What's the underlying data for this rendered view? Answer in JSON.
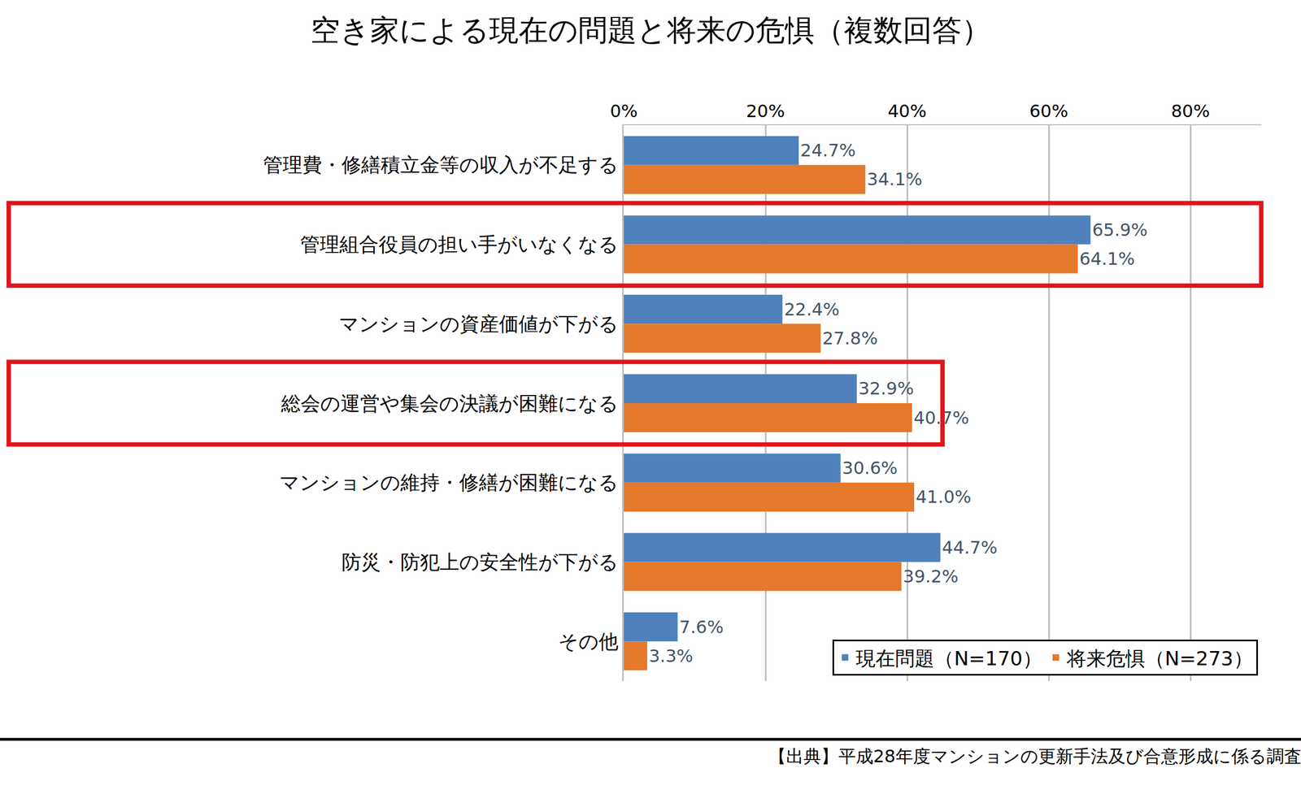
{
  "chart_data": {
    "type": "bar",
    "title": "空き家による現在の問題と将来の危惧（複数回答）",
    "orientation": "horizontal",
    "categories": [
      "管理費・修繕積立金等の収入が不足する",
      "管理組合役員の担い手がいなくなる",
      "マンションの資産価値が下がる",
      "総会の運営や集会の決議が困難になる",
      "マンションの維持・修繕が困難になる",
      "防災・防犯上の安全性が下がる",
      "その他"
    ],
    "series": [
      {
        "name": "現在問題（N=170）",
        "color": "#4f81bd",
        "values": [
          24.7,
          65.9,
          22.4,
          32.9,
          30.6,
          44.7,
          7.6
        ],
        "value_labels": [
          "24.7%",
          "65.9%",
          "22.4%",
          "32.9%",
          "30.6%",
          "44.7%",
          "7.6%"
        ]
      },
      {
        "name": "将来危惧（N=273）",
        "color": "#e4782b",
        "values": [
          34.1,
          64.1,
          27.8,
          40.7,
          41.0,
          39.2,
          3.3
        ],
        "value_labels": [
          "34.1%",
          "64.1%",
          "27.8%",
          "40.7%",
          "41.0%",
          "39.2%",
          "3.3%"
        ]
      }
    ],
    "xlim": [
      0,
      90
    ],
    "xticks": [
      {
        "value": 0,
        "label": "0%"
      },
      {
        "value": 20,
        "label": "20%"
      },
      {
        "value": 40,
        "label": "40%"
      },
      {
        "value": 60,
        "label": "60%"
      },
      {
        "value": 80,
        "label": "80%"
      }
    ],
    "grid": true,
    "data_labels": true,
    "legend": "lower right",
    "annotations": [
      "【出典】平成28年度マンションの更新手法及び合意形成に係る調査"
    ]
  }
}
